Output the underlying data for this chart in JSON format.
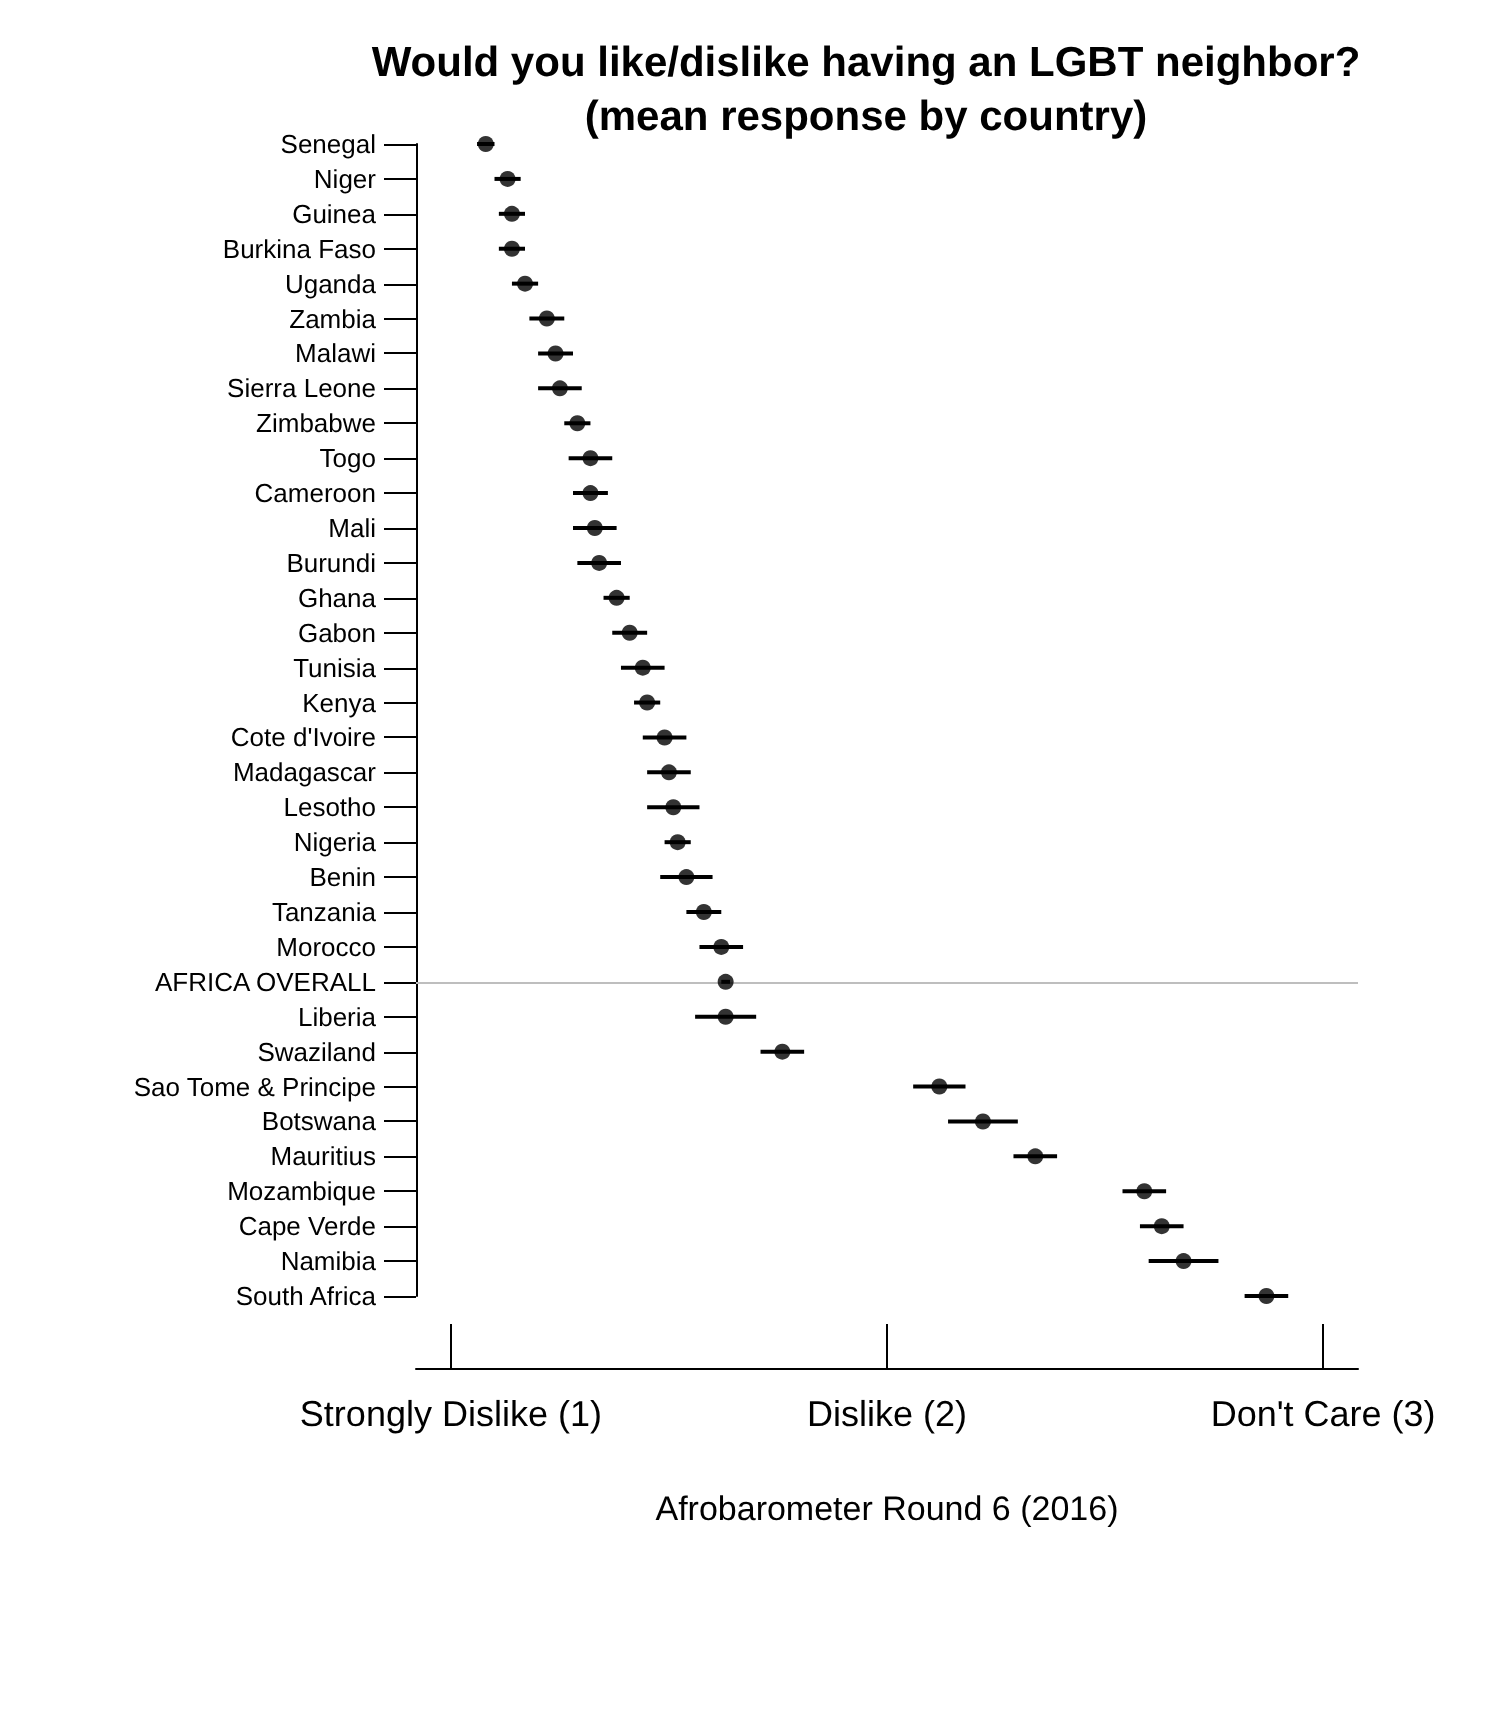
{
  "chart_data": {
    "type": "scatter",
    "title": "Would you like/dislike having an LGBT neighbor?",
    "subtitle": "(mean response by country)",
    "xlabel": "Afrobarometer Round 6 (2016)",
    "categories": [
      "Senegal",
      "Niger",
      "Guinea",
      "Burkina Faso",
      "Uganda",
      "Zambia",
      "Malawi",
      "Sierra Leone",
      "Zimbabwe",
      "Togo",
      "Cameroon",
      "Mali",
      "Burundi",
      "Ghana",
      "Gabon",
      "Tunisia",
      "Kenya",
      "Cote d'Ivoire",
      "Madagascar",
      "Lesotho",
      "Nigeria",
      "Benin",
      "Tanzania",
      "Morocco",
      "AFRICA OVERALL",
      "Liberia",
      "Swaziland",
      "Sao Tome & Principe",
      "Botswana",
      "Mauritius",
      "Mozambique",
      "Cape Verde",
      "Namibia",
      "South Africa"
    ],
    "orientation": "horizontal",
    "values": [
      1.08,
      1.13,
      1.14,
      1.14,
      1.17,
      1.22,
      1.24,
      1.25,
      1.29,
      1.32,
      1.32,
      1.33,
      1.34,
      1.38,
      1.41,
      1.44,
      1.45,
      1.49,
      1.5,
      1.51,
      1.52,
      1.54,
      1.58,
      1.62,
      1.63,
      1.63,
      1.76,
      2.12,
      2.22,
      2.34,
      2.59,
      2.63,
      2.68,
      2.87
    ],
    "errors": [
      0.02,
      0.03,
      0.03,
      0.03,
      0.03,
      0.04,
      0.04,
      0.05,
      0.03,
      0.05,
      0.04,
      0.05,
      0.05,
      0.03,
      0.04,
      0.05,
      0.03,
      0.05,
      0.05,
      0.06,
      0.03,
      0.06,
      0.04,
      0.05,
      0.01,
      0.07,
      0.05,
      0.06,
      0.08,
      0.05,
      0.05,
      0.05,
      0.08,
      0.05
    ],
    "color": "#000000",
    "marker": "circle",
    "grid": false,
    "xlim": [
      0.92,
      3.08
    ],
    "xticks": [
      {
        "value": 1,
        "label": "Strongly Dislike (1)"
      },
      {
        "value": 2,
        "label": "Dislike (2)"
      },
      {
        "value": 3,
        "label": "Don't Care (3)"
      }
    ],
    "ref_lines": [
      {
        "axis": "y",
        "value": "AFRICA OVERALL",
        "color": "#bebebe"
      }
    ]
  }
}
